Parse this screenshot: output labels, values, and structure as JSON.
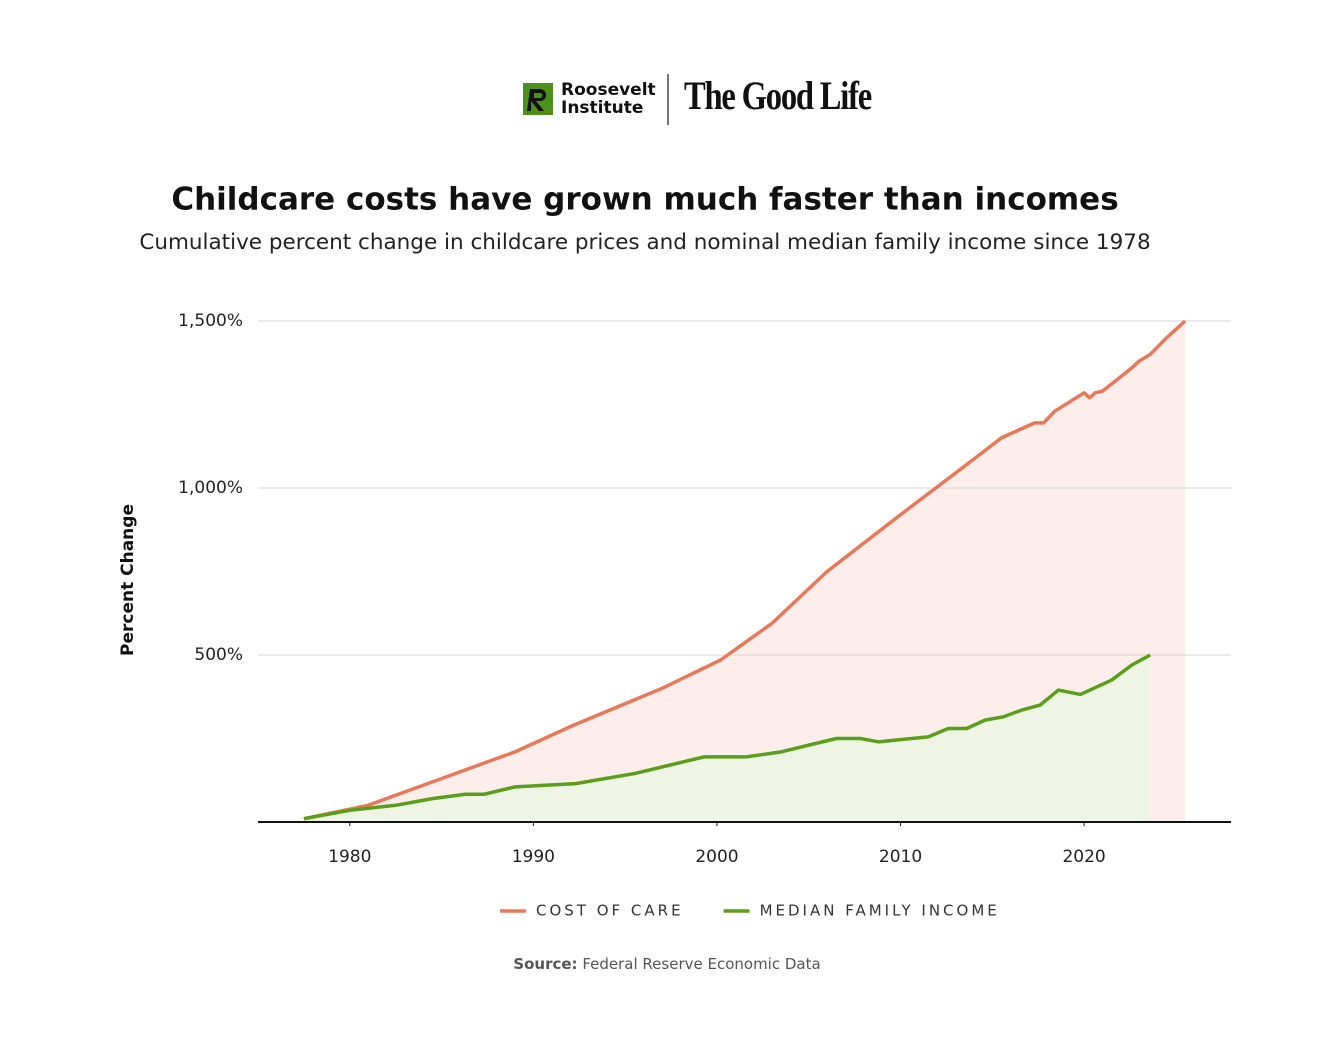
{
  "header": {
    "logo_lines": [
      "Roosevelt",
      "Institute"
    ],
    "brand": "The Good Life"
  },
  "chart_data": {
    "type": "area-line",
    "title": "Childcare costs have grown much faster than incomes",
    "subtitle": "Cumulative percent change in childcare prices and nominal median family income since 1978",
    "y_label": "Percent Change",
    "xlim": [
      1975,
      2028
    ],
    "xticks": [
      1980,
      1990,
      2000,
      2010,
      2020
    ],
    "ylim": [
      0,
      1500
    ],
    "yticks": [
      {
        "value": 500,
        "label": "500%"
      },
      {
        "value": 1000,
        "label": "1,000%"
      },
      {
        "value": 1500,
        "label": "1,500%"
      }
    ],
    "grid": true,
    "series": [
      {
        "name": "COST OF CARE",
        "color": "#e8785a",
        "fill": "#fdeeec",
        "x": [
          1977.5,
          1981,
          1984,
          1989,
          1992.2,
          1997,
          2000.2,
          2003,
          2006,
          2010,
          2013,
          2015.5,
          2017.3,
          2017.8,
          2018.4,
          2020,
          2020.3,
          2020.6,
          2021,
          2022.5,
          2023,
          2023.6,
          2024.5,
          2025.5
        ],
        "values": [
          10,
          50,
          110,
          210,
          290,
          400,
          485,
          595,
          750,
          920,
          1045,
          1150,
          1195,
          1195,
          1230,
          1285,
          1270,
          1285,
          1290,
          1355,
          1380,
          1400,
          1450,
          1500
        ]
      },
      {
        "name": "MEDIAN FAMILY INCOME",
        "color": "#5a9e1a",
        "fill": "#eef5e4",
        "x": [
          1977.5,
          1980,
          1982.5,
          1984.5,
          1986.3,
          1987.3,
          1989,
          1992.3,
          1995.5,
          1999.3,
          2001.6,
          2003.5,
          2006.5,
          2007.8,
          2008.8,
          2011.5,
          2012.6,
          2013.6,
          2014.6,
          2015.6,
          2016.6,
          2017.6,
          2018.6,
          2019.8,
          2021.5,
          2022.6,
          2023.6
        ],
        "values": [
          10,
          35,
          50,
          70,
          83,
          83,
          105,
          115,
          145,
          195,
          195,
          210,
          250,
          250,
          240,
          255,
          280,
          280,
          305,
          315,
          335,
          350,
          395,
          382,
          425,
          470,
          500
        ]
      }
    ],
    "source": {
      "label": "Source:",
      "text": "Federal Reserve Economic Data"
    }
  }
}
